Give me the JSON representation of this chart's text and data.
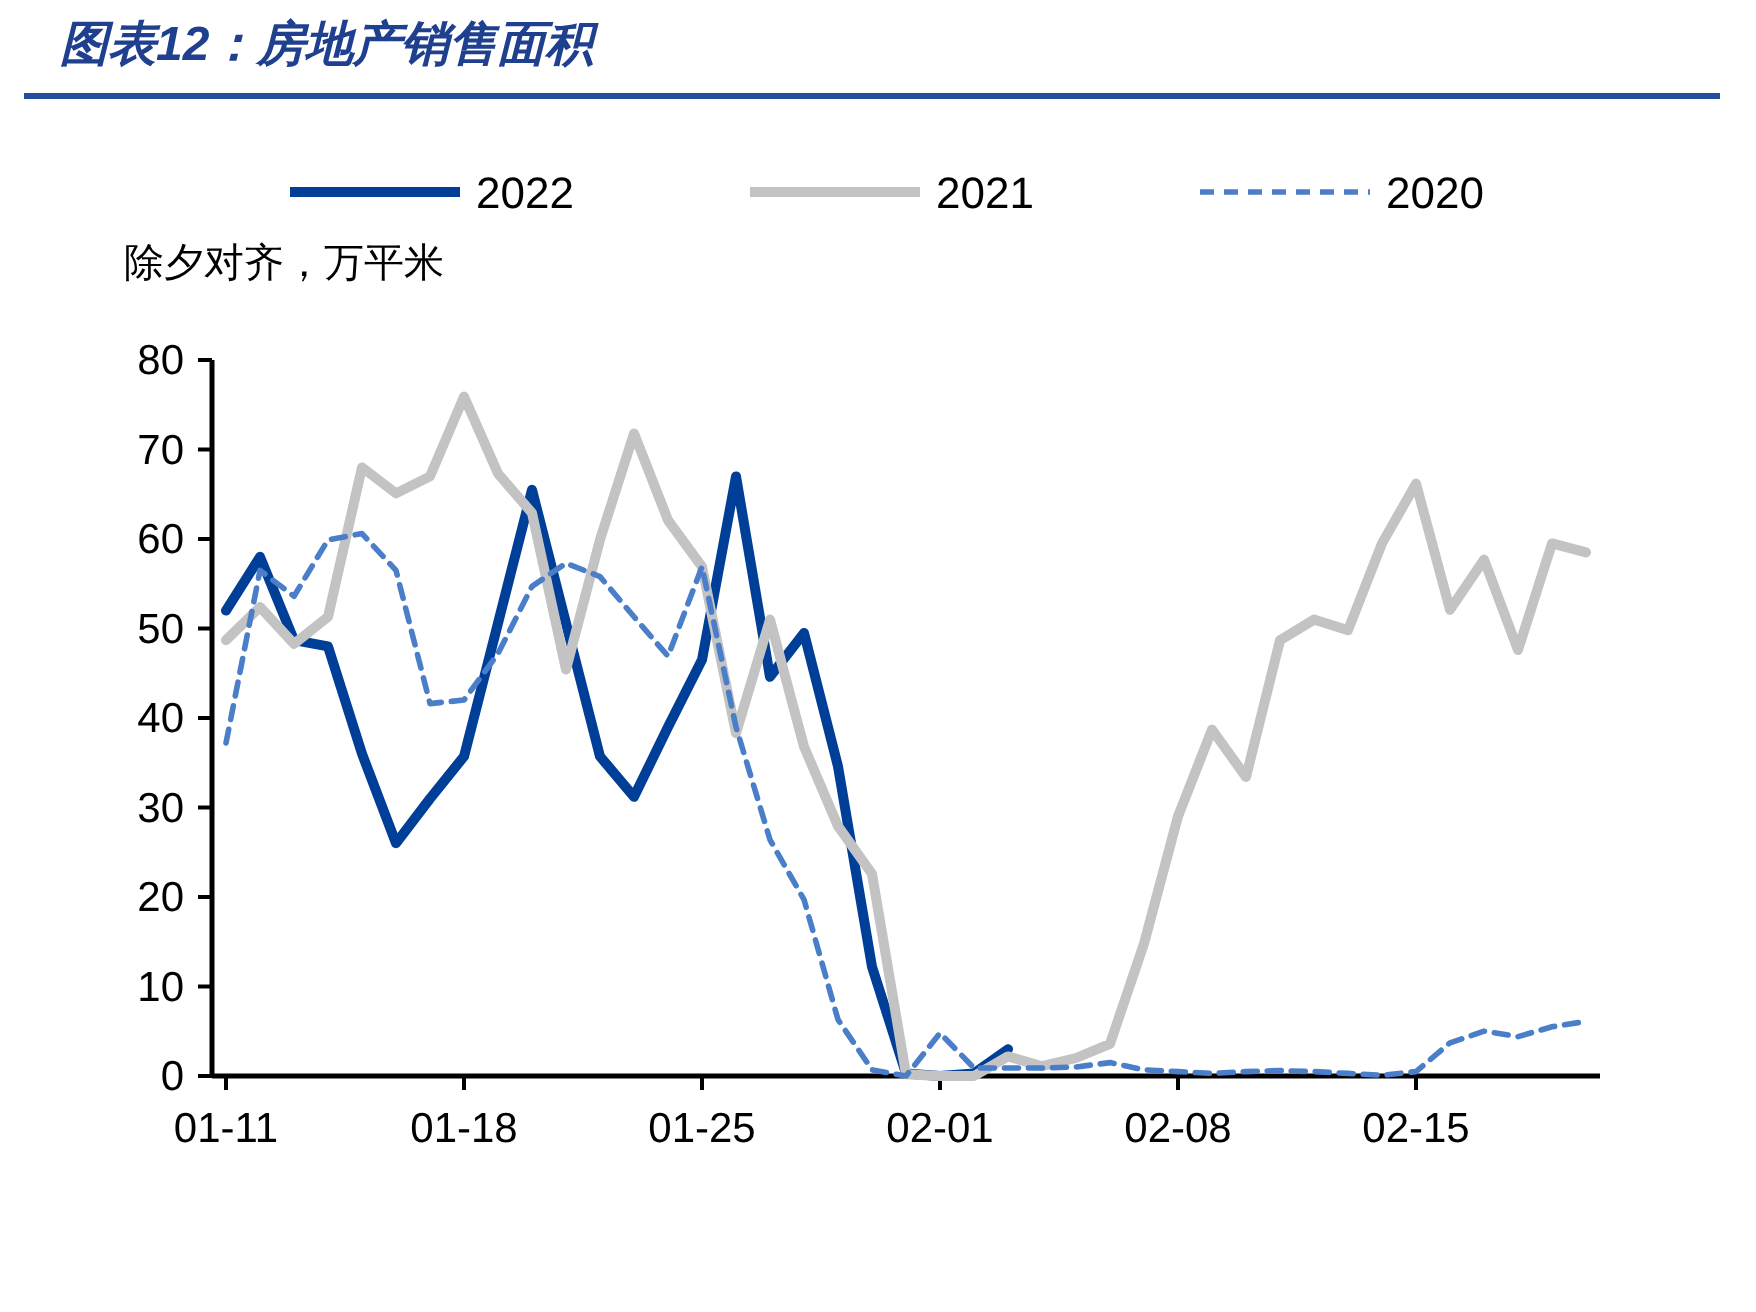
{
  "chart_data": {
    "type": "line",
    "title": "图表12：房地产销售面积",
    "ylabel": "除夕对齐，万平米",
    "categories": [
      "01-11",
      null,
      null,
      null,
      null,
      null,
      null,
      "01-18",
      null,
      null,
      null,
      null,
      null,
      null,
      "01-25",
      null,
      null,
      null,
      null,
      null,
      null,
      "02-01",
      null,
      null,
      null,
      null,
      null,
      null,
      "02-08",
      null,
      null,
      null,
      null,
      null,
      null,
      "02-15",
      null,
      null,
      null,
      null,
      null
    ],
    "ylim": [
      0,
      80
    ],
    "yticks": [
      0,
      10,
      20,
      30,
      40,
      50,
      60,
      70,
      80
    ],
    "grid": false,
    "legend": "top",
    "series": [
      {
        "name": "2022",
        "color": "#003f98",
        "line_style": "solid",
        "values": [
          52.0,
          58.0,
          48.7,
          48.0,
          36.0,
          26.0,
          31.0,
          35.7,
          50.6,
          65.5,
          50.6,
          35.7,
          31.2,
          39.0,
          46.5,
          67.0,
          44.6,
          49.5,
          34.6,
          12.2,
          0.3,
          0.0,
          0.3,
          3.0,
          null,
          null,
          null,
          null,
          null,
          null,
          null,
          null,
          null,
          null,
          null,
          null,
          null,
          null,
          null,
          null,
          null
        ]
      },
      {
        "name": "2021",
        "color": "#c3c3c3",
        "line_style": "solid",
        "values": [
          48.7,
          52.4,
          48.3,
          51.3,
          68.0,
          65.1,
          67.0,
          75.9,
          67.3,
          62.9,
          45.4,
          59.9,
          71.8,
          62.1,
          56.9,
          38.3,
          51.0,
          36.8,
          27.9,
          22.6,
          0.2,
          0.0,
          0.0,
          2.2,
          1.1,
          2.0,
          3.6,
          14.8,
          29.0,
          38.7,
          33.4,
          48.7,
          51.0,
          49.8,
          59.5,
          66.2,
          52.1,
          57.7,
          47.6,
          59.5,
          58.5
        ]
      },
      {
        "name": "2020",
        "color": "#4a7ec8",
        "line_style": "dashed",
        "values": [
          37.2,
          56.5,
          53.6,
          59.9,
          60.6,
          56.5,
          41.6,
          42.0,
          47.2,
          54.7,
          57.3,
          55.8,
          51.3,
          46.9,
          56.9,
          39.0,
          26.4,
          19.7,
          6.3,
          0.7,
          0.0,
          4.8,
          0.9,
          0.9,
          0.9,
          1.0,
          1.5,
          0.7,
          0.5,
          0.3,
          0.5,
          0.6,
          0.5,
          0.3,
          0.1,
          0.5,
          3.7,
          5.0,
          4.4,
          5.5,
          6.1
        ]
      }
    ]
  }
}
